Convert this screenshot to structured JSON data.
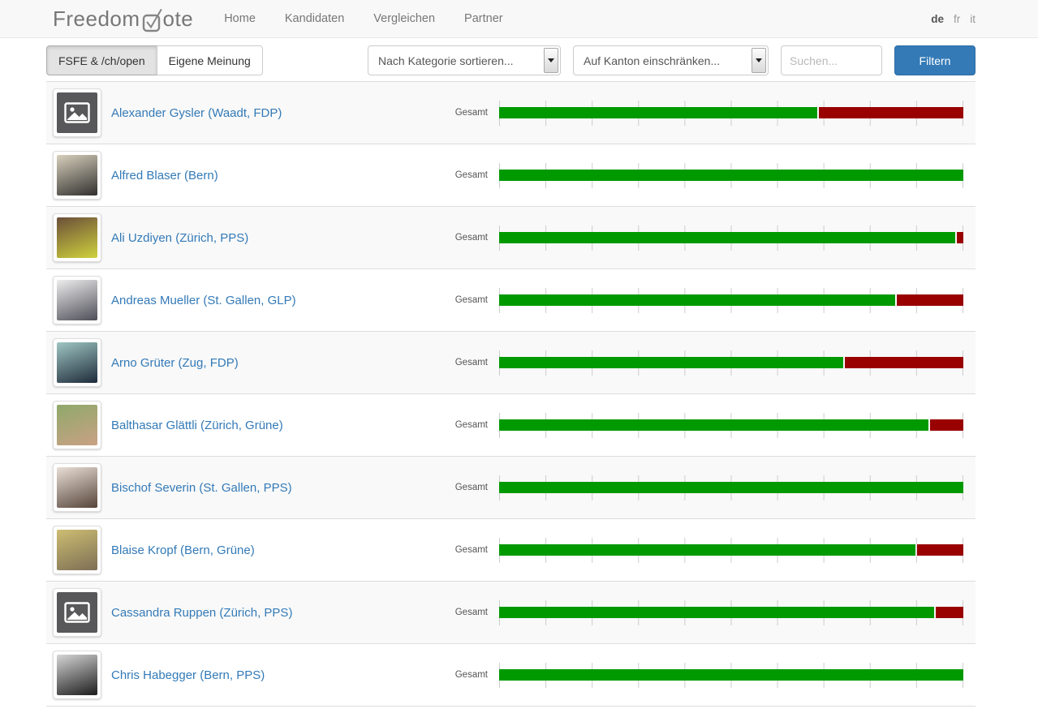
{
  "navbar": {
    "brand": {
      "prefix": "Freedom",
      "suffix": "ote"
    },
    "links": [
      {
        "label": "Home"
      },
      {
        "label": "Kandidaten"
      },
      {
        "label": "Vergleichen"
      },
      {
        "label": "Partner"
      }
    ],
    "languages": [
      {
        "code": "de",
        "active": true
      },
      {
        "code": "fr",
        "active": false
      },
      {
        "code": "it",
        "active": false
      }
    ]
  },
  "filters": {
    "source_toggle": [
      {
        "label": "FSFE & /ch/open",
        "active": true
      },
      {
        "label": "Eigene Meinung",
        "active": false
      }
    ],
    "category_select_value": "Nach Kategorie sortieren...",
    "canton_select_value": "Auf Kanton einschränken...",
    "search_placeholder": "Suchen...",
    "submit_label": "Filtern"
  },
  "list": {
    "score_label": "Gesamt",
    "colors": {
      "positive": "#009900",
      "negative": "#990000",
      "tick": "#cccccc"
    },
    "candidates": [
      {
        "name": "Alexander Gysler (Waadt, FDP)",
        "green_pct": 68.5,
        "red_pct": 31.5,
        "photo": "placeholder"
      },
      {
        "name": "Alfred Blaser (Bern)",
        "green_pct": 100,
        "red_pct": 0,
        "photo": "photo",
        "photo_colors": [
          "#d8d0bd",
          "#31302e"
        ]
      },
      {
        "name": "Ali Uzdiyen (Zürich, PPS)",
        "green_pct": 98.3,
        "red_pct": 1.7,
        "photo": "photo",
        "photo_colors": [
          "#6b4f3a",
          "#cfd23c"
        ]
      },
      {
        "name": "Andreas Mueller (St. Gallen, GLP)",
        "green_pct": 85.4,
        "red_pct": 14.6,
        "photo": "photo",
        "photo_colors": [
          "#ededed",
          "#4e4e58"
        ]
      },
      {
        "name": "Arno Grüter (Zug, FDP)",
        "green_pct": 74.1,
        "red_pct": 25.9,
        "photo": "photo",
        "photo_colors": [
          "#9fc6c3",
          "#1e2b3a"
        ]
      },
      {
        "name": "Balthasar Glättli (Zürich, Grüne)",
        "green_pct": 92.4,
        "red_pct": 7.6,
        "photo": "photo",
        "photo_colors": [
          "#8fa96b",
          "#c9a184"
        ]
      },
      {
        "name": "Bischof Severin (St. Gallen, PPS)",
        "green_pct": 100,
        "red_pct": 0,
        "photo": "photo",
        "photo_colors": [
          "#e9dfd7",
          "#57453a"
        ]
      },
      {
        "name": "Blaise Kropf (Bern, Grüne)",
        "green_pct": 89.7,
        "red_pct": 10.3,
        "photo": "photo",
        "photo_colors": [
          "#cdbd72",
          "#7d6f55"
        ]
      },
      {
        "name": "Cassandra Ruppen (Zürich, PPS)",
        "green_pct": 93.7,
        "red_pct": 6.3,
        "photo": "placeholder"
      },
      {
        "name": "Chris Habegger (Bern, PPS)",
        "green_pct": 100,
        "red_pct": 0,
        "photo": "photo",
        "photo_colors": [
          "#d6d6d6",
          "#1c1c1c"
        ]
      }
    ]
  }
}
